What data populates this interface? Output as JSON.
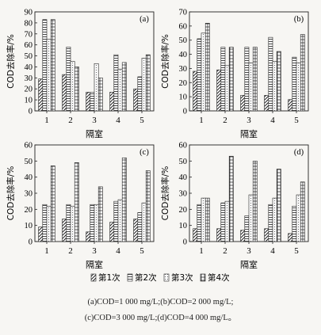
{
  "legend": [
    "第1次",
    "第2次",
    "第3次",
    "第4次"
  ],
  "captions": [
    "(a)COD=1 000 mg/L;(b)COD=2 000 mg/L;",
    "(c)COD=3 000 mg/L;(d)COD=4 000 mg/L。"
  ],
  "chart_data": [
    {
      "type": "bar",
      "panel": "(a)",
      "categories": [
        "1",
        "2",
        "3",
        "4",
        "5"
      ],
      "xlabel": "隔室",
      "ylabel": "COD去除率/%",
      "ylim": [
        0,
        90
      ],
      "yticks": [
        0,
        10,
        20,
        30,
        40,
        50,
        60,
        70,
        80,
        90
      ],
      "series": [
        {
          "name": "第1次",
          "values": [
            29,
            33,
            17,
            17,
            20
          ]
        },
        {
          "name": "第2次",
          "values": [
            83,
            58,
            17,
            51,
            31
          ]
        },
        {
          "name": "第3次",
          "values": [
            65,
            45,
            43,
            38,
            48
          ]
        },
        {
          "name": "第4次",
          "values": [
            83,
            40,
            30,
            44,
            51
          ]
        }
      ]
    },
    {
      "type": "bar",
      "panel": "(b)",
      "categories": [
        "1",
        "2",
        "3",
        "4",
        "5"
      ],
      "xlabel": "隔室",
      "ylabel": "COD去除率/%",
      "ylim": [
        0,
        70
      ],
      "yticks": [
        0,
        10,
        20,
        30,
        40,
        50,
        60,
        70
      ],
      "series": [
        {
          "name": "第1次",
          "values": [
            28,
            29,
            11,
            11,
            8
          ]
        },
        {
          "name": "第2次",
          "values": [
            51,
            45,
            45,
            52,
            38
          ]
        },
        {
          "name": "第3次",
          "values": [
            55,
            32,
            34,
            35,
            34
          ]
        },
        {
          "name": "第4次",
          "values": [
            62,
            45,
            45,
            42,
            54
          ]
        }
      ]
    },
    {
      "type": "bar",
      "panel": "(c)",
      "categories": [
        "1",
        "2",
        "3",
        "4",
        "5"
      ],
      "xlabel": "隔室",
      "ylabel": "COD去除率/%",
      "ylim": [
        0,
        60
      ],
      "yticks": [
        0,
        10,
        20,
        30,
        40,
        50,
        60
      ],
      "series": [
        {
          "name": "第1次",
          "values": [
            9,
            14,
            6,
            12,
            14
          ]
        },
        {
          "name": "第2次",
          "values": [
            23,
            23,
            23,
            25,
            18
          ]
        },
        {
          "name": "第3次",
          "values": [
            22,
            22,
            23,
            26,
            24
          ]
        },
        {
          "name": "第4次",
          "values": [
            47,
            49,
            34,
            52,
            44
          ]
        }
      ]
    },
    {
      "type": "bar",
      "panel": "(d)",
      "categories": [
        "1",
        "2",
        "3",
        "4",
        "5"
      ],
      "xlabel": "隔室",
      "ylabel": "COD去除率/%",
      "ylim": [
        0,
        60
      ],
      "yticks": [
        0,
        10,
        20,
        30,
        40,
        50,
        60
      ],
      "series": [
        {
          "name": "第1次",
          "values": [
            8,
            8,
            7,
            8,
            5
          ]
        },
        {
          "name": "第2次",
          "values": [
            23,
            24,
            16,
            23,
            22
          ]
        },
        {
          "name": "第3次",
          "values": [
            27,
            25,
            29,
            27,
            29
          ]
        },
        {
          "name": "第4次",
          "values": [
            27,
            53,
            50,
            45,
            37
          ]
        }
      ]
    }
  ]
}
